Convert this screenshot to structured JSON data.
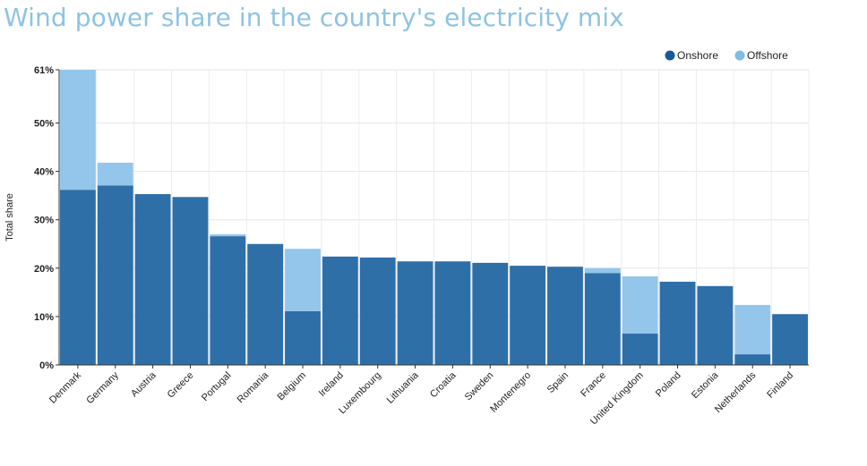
{
  "chart_data": {
    "type": "bar",
    "stacked": true,
    "title": "Wind power share in the country's electricity mix",
    "xlabel": "",
    "ylabel": "Total share",
    "ylim": [
      0,
      61
    ],
    "yticks": [
      0,
      10,
      20,
      30,
      40,
      50,
      61
    ],
    "ytick_labels": [
      "0%",
      "10%",
      "20%",
      "30%",
      "40%",
      "50%",
      "61%"
    ],
    "grid": true,
    "legend_position": "top-right",
    "categories": [
      "Denmark",
      "Germany",
      "Austria",
      "Greece",
      "Portugal",
      "Romania",
      "Belgium",
      "Ireland",
      "Luxembourg",
      "Lithuania",
      "Croatia",
      "Sweden",
      "Montenegro",
      "Spain",
      "France",
      "United Kingdom",
      "Poland",
      "Estonia",
      "Netherlands",
      "Finland"
    ],
    "series": [
      {
        "name": "Onshore",
        "color": "#2f6fa8",
        "values": [
          36.2,
          37.1,
          35.3,
          34.7,
          26.6,
          25.0,
          11.1,
          22.4,
          22.2,
          21.4,
          21.4,
          21.1,
          20.5,
          20.3,
          19.0,
          6.5,
          17.2,
          16.3,
          2.2,
          10.5
        ]
      },
      {
        "name": "Offshore",
        "color": "#93c6ea",
        "values": [
          24.8,
          4.7,
          0,
          0,
          0.4,
          0,
          12.9,
          0,
          0,
          0,
          0,
          0,
          0,
          0,
          1.0,
          11.8,
          0,
          0,
          10.2,
          0
        ]
      }
    ]
  },
  "legend": {
    "items": [
      {
        "label": "Onshore",
        "color": "#155a99"
      },
      {
        "label": "Offshore",
        "color": "#7dbde6"
      }
    ]
  }
}
